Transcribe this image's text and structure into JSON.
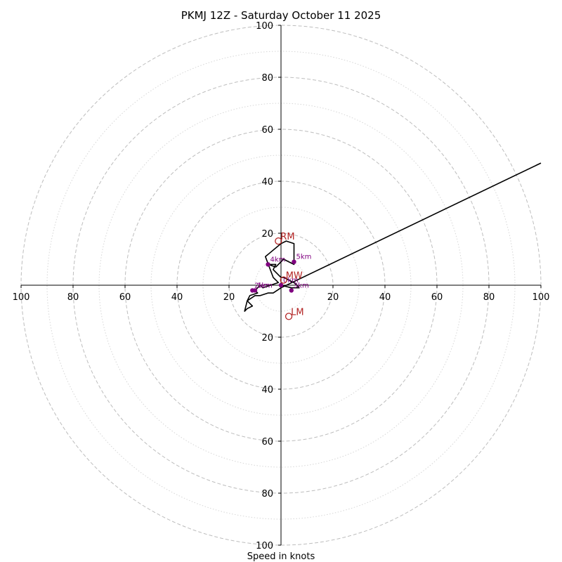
{
  "chart_data": {
    "type": "hodograph",
    "title": "PKMJ 12Z - Saturday October 11 2025",
    "xlabel": "Speed in knots",
    "units": "knots",
    "max_speed": 100,
    "ring_major": [
      20,
      40,
      60,
      80,
      100
    ],
    "ring_minor": [
      10,
      30,
      50,
      70,
      90
    ],
    "x_ticks": [
      "100",
      "80",
      "60",
      "40",
      "20",
      "20",
      "40",
      "60",
      "80",
      "100"
    ],
    "x_tick_values": [
      -100,
      -80,
      -60,
      -40,
      -20,
      20,
      40,
      60,
      80,
      100
    ],
    "y_ticks": [
      "100",
      "80",
      "60",
      "40",
      "20",
      "20",
      "40",
      "60",
      "80",
      "100"
    ],
    "y_tick_values": [
      100,
      80,
      60,
      40,
      20,
      -20,
      -40,
      -60,
      -80,
      -100
    ],
    "trace": {
      "name": "hodograph",
      "color": "#000000",
      "points": [
        [
          0,
          0
        ],
        [
          4,
          -1
        ],
        [
          7,
          -1
        ],
        [
          5,
          1
        ],
        [
          1,
          3
        ],
        [
          0,
          3
        ],
        [
          -3,
          6
        ],
        [
          -2,
          8
        ],
        [
          -5,
          8
        ],
        [
          -2,
          7
        ],
        [
          1,
          10
        ],
        [
          5,
          8
        ],
        [
          5,
          16
        ],
        [
          2,
          17
        ],
        [
          0,
          16
        ],
        [
          -6,
          11
        ],
        [
          -3,
          3
        ],
        [
          -1,
          1
        ],
        [
          -7,
          -1
        ],
        [
          -8,
          0
        ],
        [
          -10,
          -2
        ],
        [
          -9,
          -3
        ],
        [
          -12,
          -4
        ],
        [
          -13,
          -6
        ],
        [
          -11,
          -8
        ],
        [
          -13,
          -9
        ],
        [
          -14,
          -10
        ],
        [
          -13,
          -6
        ],
        [
          -10,
          -4
        ],
        [
          -8,
          -4
        ],
        [
          -5,
          -3
        ],
        [
          -3,
          -3
        ],
        [
          0,
          -1
        ],
        [
          100,
          47
        ]
      ]
    },
    "height_markers": [
      {
        "label": "2km",
        "u": -11,
        "v": -2
      },
      {
        "label": "3km",
        "u": 4,
        "v": -2
      },
      {
        "label": "4km",
        "u": -5,
        "v": 8
      },
      {
        "label": "5km",
        "u": 5,
        "v": 9
      },
      {
        "label": "1km",
        "u": -10,
        "v": -2
      },
      {
        "label": "0km",
        "u": 0,
        "v": 0
      }
    ],
    "storm_motion": [
      {
        "label": "RM",
        "u": -1,
        "v": 17
      },
      {
        "label": "MW",
        "u": 1,
        "v": 2
      },
      {
        "label": "LM",
        "u": 3,
        "v": -12
      }
    ],
    "colors": {
      "trace": "#000000",
      "height_marker": "#800080",
      "storm_motion": "#b22222",
      "grid": "#bdbdbd",
      "axis": "#000000"
    }
  }
}
